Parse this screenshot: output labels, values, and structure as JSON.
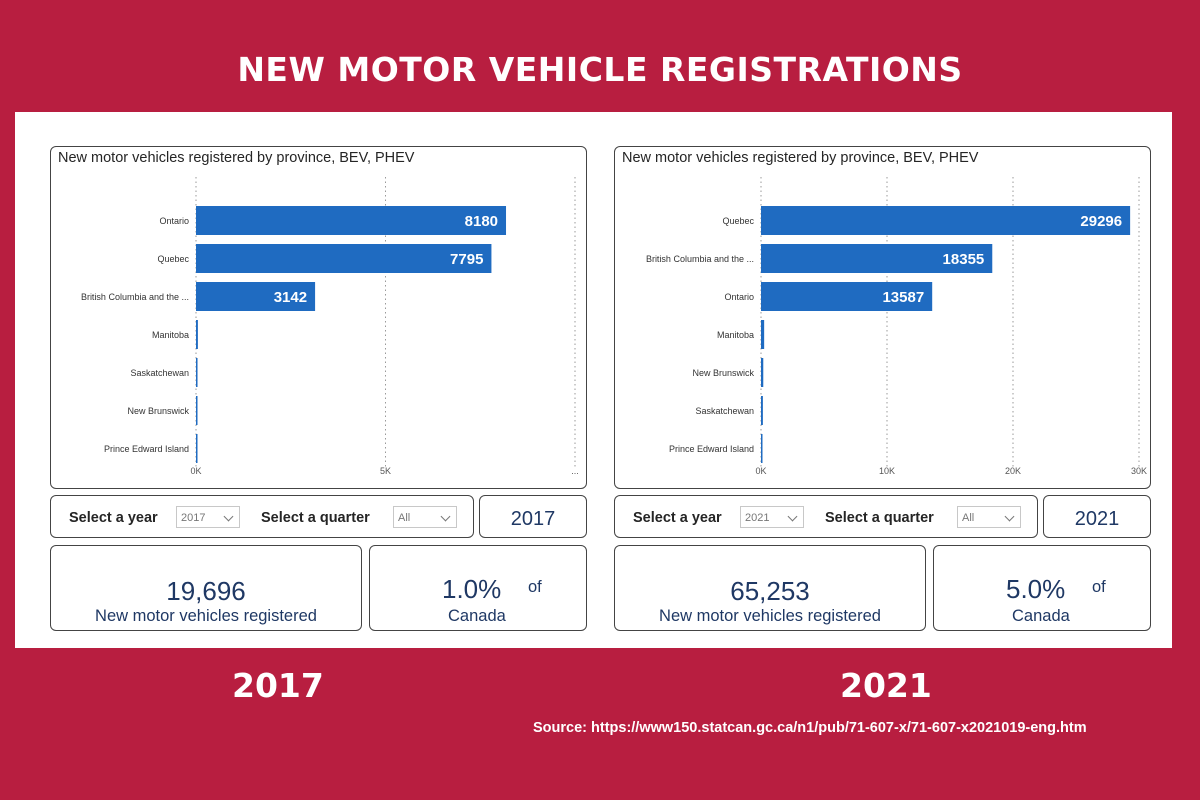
{
  "title": "NEW MOTOR VEHICLE REGISTRATIONS",
  "source": "Source: https://www150.statcan.gc.ca/n1/pub/71-607-x/71-607-x2021019-eng.htm",
  "panels": [
    {
      "year_caption": "2017",
      "selector": {
        "year_label": "Select a year",
        "year_value": "2017",
        "quarter_label": "Select a quarter",
        "quarter_value": "All",
        "year_display": "2017"
      },
      "kpi": {
        "count": "19,696",
        "count_label": "New motor vehicles registered",
        "percent": "1.0%",
        "of_label": "of",
        "canada_label": "Canada"
      }
    },
    {
      "year_caption": "2021",
      "selector": {
        "year_label": "Select a year",
        "year_value": "2021",
        "quarter_label": "Select a quarter",
        "quarter_value": "All",
        "year_display": "2021"
      },
      "kpi": {
        "count": "65,253",
        "count_label": "New motor vehicles registered",
        "percent": "5.0%",
        "of_label": "of",
        "canada_label": "Canada"
      }
    }
  ],
  "chart_data": [
    {
      "type": "bar",
      "orientation": "horizontal",
      "title": "New motor vehicles registered by province, BEV, PHEV",
      "categories": [
        "Ontario",
        "Quebec",
        "British Columbia and the ...",
        "Manitoba",
        "Saskatchewan",
        "New Brunswick",
        "Prince Edward Island"
      ],
      "values": [
        8180,
        7795,
        3142,
        50,
        40,
        20,
        10
      ],
      "data_labels": [
        "8180",
        "7795",
        "3142",
        "",
        "",
        "",
        ""
      ],
      "xlim": [
        0,
        10000
      ],
      "ticks": [
        0,
        5000,
        10000
      ],
      "tick_labels": [
        "0K",
        "5K",
        "..."
      ],
      "grid": true,
      "bar_color": "#1f6bc1"
    },
    {
      "type": "bar",
      "orientation": "horizontal",
      "title": "New motor vehicles registered by province, BEV, PHEV",
      "categories": [
        "Quebec",
        "British Columbia and the ...",
        "Ontario",
        "Manitoba",
        "New Brunswick",
        "Saskatchewan",
        "Prince Edward Island"
      ],
      "values": [
        29296,
        18355,
        13587,
        250,
        180,
        150,
        60
      ],
      "data_labels": [
        "29296",
        "18355",
        "13587",
        "",
        "",
        "",
        ""
      ],
      "xlim": [
        0,
        30000
      ],
      "ticks": [
        0,
        10000,
        20000,
        30000
      ],
      "tick_labels": [
        "0K",
        "10K",
        "20K",
        "30K"
      ],
      "grid": true,
      "bar_color": "#1f6bc1"
    }
  ]
}
